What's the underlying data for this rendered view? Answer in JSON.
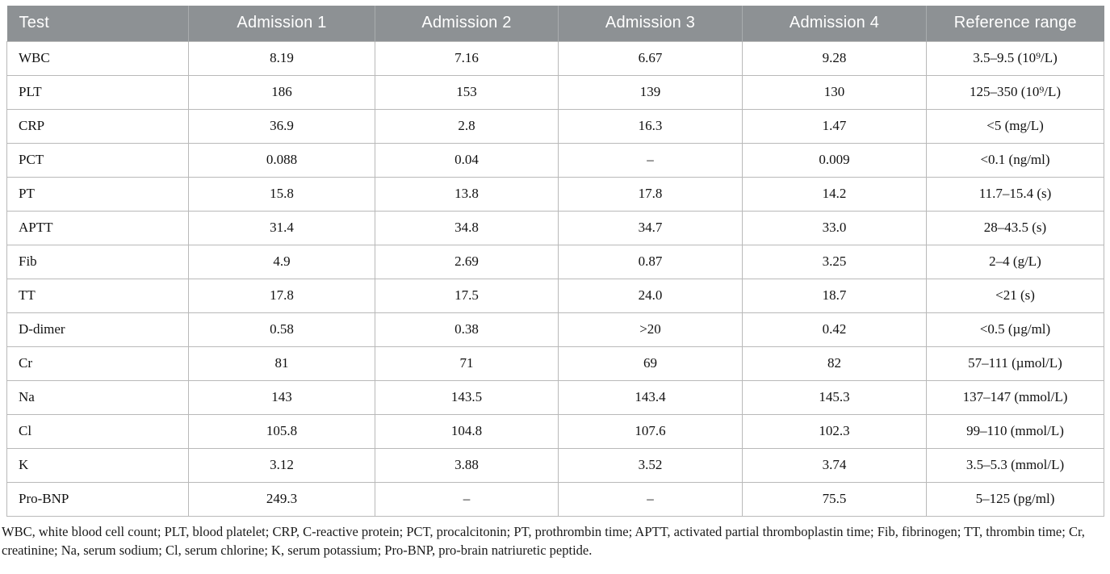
{
  "table": {
    "columns": [
      "Test",
      "Admission 1",
      "Admission 2",
      "Admission 3",
      "Admission 4",
      "Reference range"
    ],
    "rows": [
      {
        "test": "WBC",
        "values": [
          "8.19",
          "7.16",
          "6.67",
          "9.28"
        ],
        "reference_range": "3.5–9.5 (10⁹/L)"
      },
      {
        "test": "PLT",
        "values": [
          "186",
          "153",
          "139",
          "130"
        ],
        "reference_range": "125–350 (10⁹/L)"
      },
      {
        "test": "CRP",
        "values": [
          "36.9",
          "2.8",
          "16.3",
          "1.47"
        ],
        "reference_range": "<5 (mg/L)"
      },
      {
        "test": "PCT",
        "values": [
          "0.088",
          "0.04",
          "–",
          "0.009"
        ],
        "reference_range": "<0.1 (ng/ml)"
      },
      {
        "test": "PT",
        "values": [
          "15.8",
          "13.8",
          "17.8",
          "14.2"
        ],
        "reference_range": "11.7–15.4 (s)"
      },
      {
        "test": "APTT",
        "values": [
          "31.4",
          "34.8",
          "34.7",
          "33.0"
        ],
        "reference_range": "28–43.5 (s)"
      },
      {
        "test": "Fib",
        "values": [
          "4.9",
          "2.69",
          "0.87",
          "3.25"
        ],
        "reference_range": "2–4 (g/L)"
      },
      {
        "test": "TT",
        "values": [
          "17.8",
          "17.5",
          "24.0",
          "18.7"
        ],
        "reference_range": "<21 (s)"
      },
      {
        "test": "D-dimer",
        "values": [
          "0.58",
          "0.38",
          ">20",
          "0.42"
        ],
        "reference_range": "<0.5 (µg/ml)"
      },
      {
        "test": "Cr",
        "values": [
          "81",
          "71",
          "69",
          "82"
        ],
        "reference_range": "57–111 (µmol/L)"
      },
      {
        "test": "Na",
        "values": [
          "143",
          "143.5",
          "143.4",
          "145.3"
        ],
        "reference_range": "137–147 (mmol/L)"
      },
      {
        "test": "Cl",
        "values": [
          "105.8",
          "104.8",
          "107.6",
          "102.3"
        ],
        "reference_range": "99–110 (mmol/L)"
      },
      {
        "test": "K",
        "values": [
          "3.12",
          "3.88",
          "3.52",
          "3.74"
        ],
        "reference_range": "3.5–5.3 (mmol/L)"
      },
      {
        "test": "Pro-BNP",
        "values": [
          "249.3",
          "–",
          "–",
          "75.5"
        ],
        "reference_range": "5–125 (pg/ml)"
      }
    ]
  },
  "footnote": "WBC, white blood cell count; PLT, blood platelet; CRP, C-reactive protein; PCT, procalcitonin; PT, prothrombin time; APTT, activated partial thromboplastin time; Fib, fibrinogen; TT, thrombin time; Cr, creatinine; Na, serum sodium; Cl, serum chlorine; K, serum potassium; Pro-BNP, pro-brain natriuretic peptide.",
  "colors": {
    "header_bg": "#8d9194",
    "header_text": "#ffffff",
    "header_separator": "#a9acae",
    "grid_line": "#b9b9b9",
    "body_text": "#111111"
  }
}
